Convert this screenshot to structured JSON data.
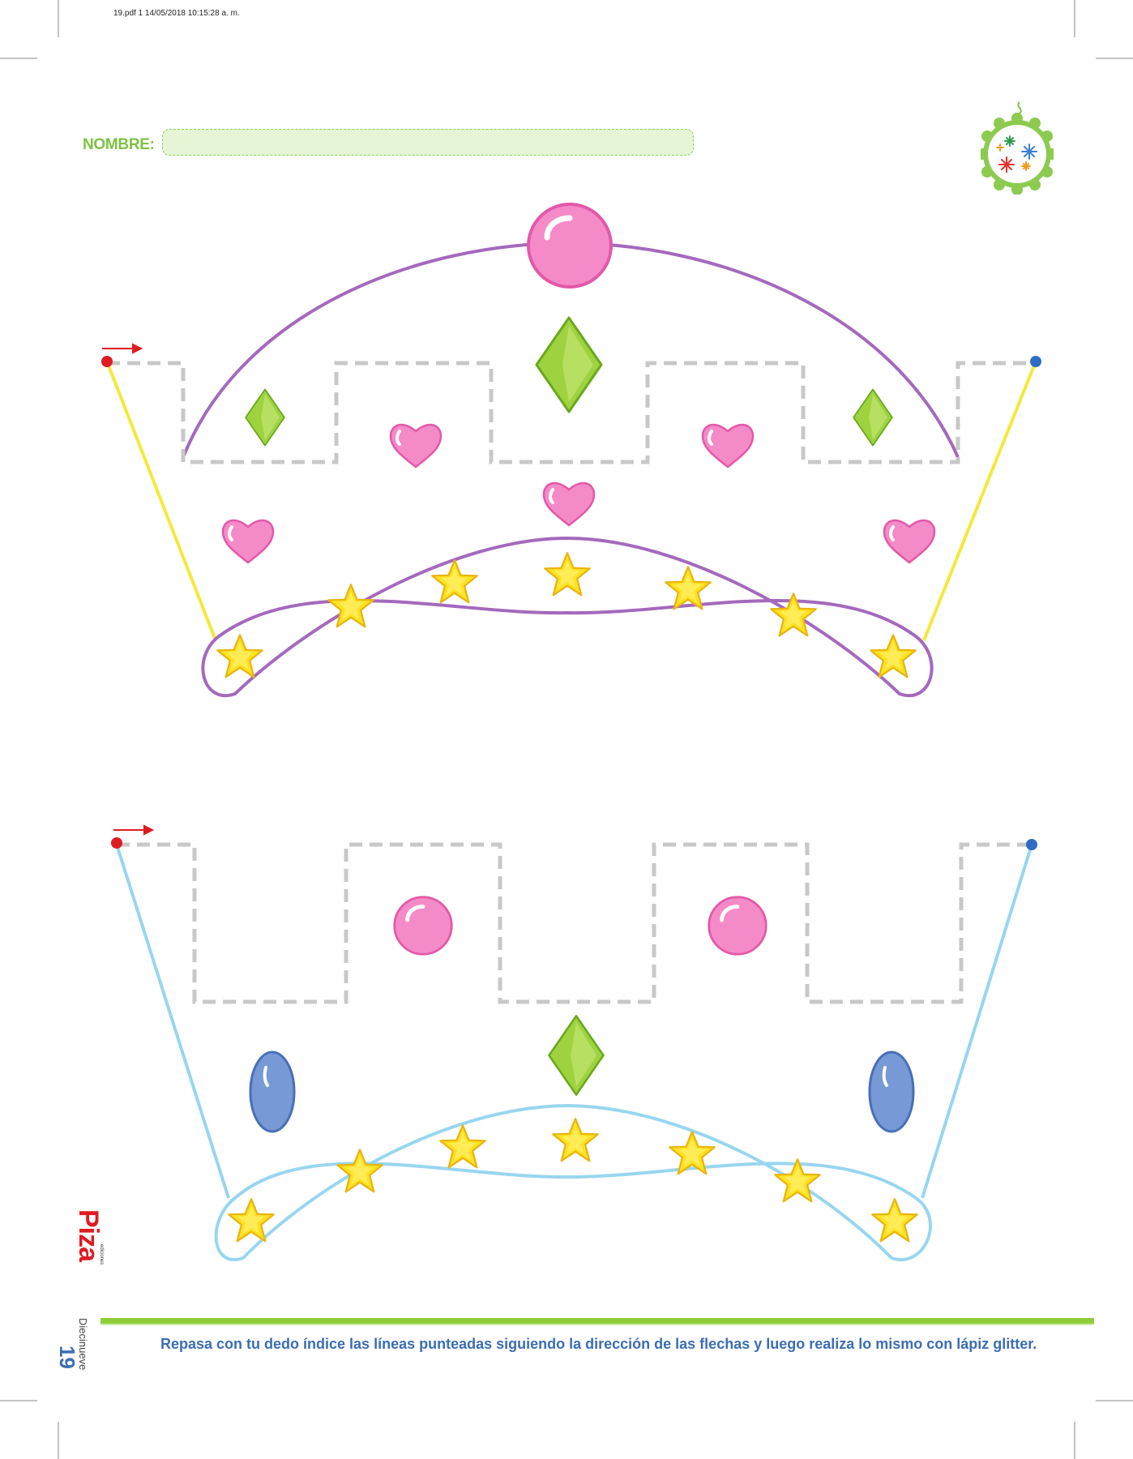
{
  "print_meta": "19.pdf   1   14/05/2018   10:15:28 a. m.",
  "name_label": "NOMBRE:",
  "name_value": "",
  "instructions": "Repasa con tu dedo índice las líneas punteadas siguiendo la dirección de las flechas y luego realiza lo mismo con lápiz glitter.",
  "page_number": "19",
  "page_word": "Diecinueve",
  "logo_text": "Piza",
  "logo_subtext": "ediciones",
  "colors": {
    "green_label": "#7dc242",
    "instruction_blue": "#3b6db4",
    "crown1_outline": "#a469bd",
    "crown1_sides": "#f6e83b",
    "crown2_outline": "#98d6ef",
    "pink": "#f58ac8",
    "green_gem": "#9ed33f",
    "blue_gem": "#7799d6",
    "star": "#ffe321",
    "dashed_path": "#c8c8c8",
    "start_dot": "#e01b23",
    "end_dot": "#2f6cc2"
  },
  "icons": [
    "arrow-right-icon",
    "start-dot-icon",
    "end-dot-icon",
    "star-icon",
    "heart-icon",
    "diamond-icon",
    "sphere-icon",
    "oval-gem-icon",
    "fireworks-badge-icon"
  ]
}
